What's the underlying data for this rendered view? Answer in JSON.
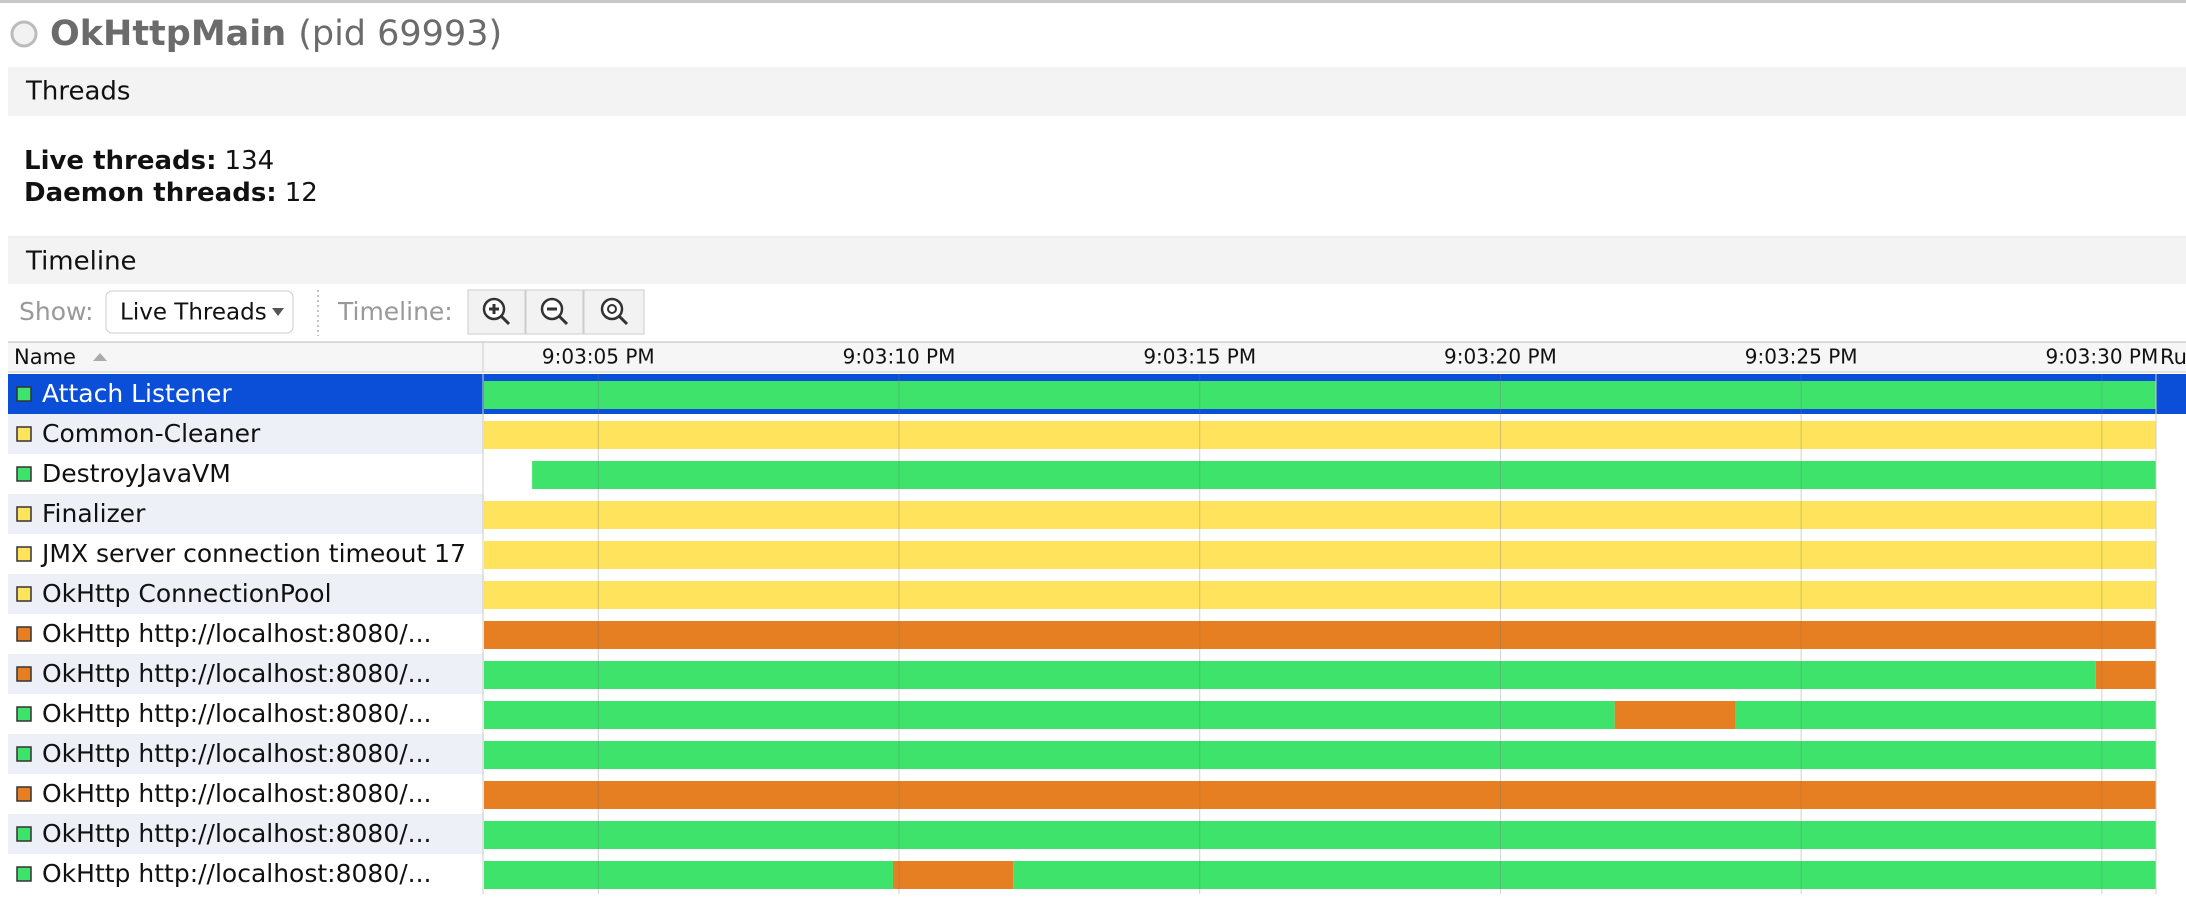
{
  "header": {
    "title": "OkHttpMain",
    "pid": "(pid 69993)"
  },
  "threads_section": {
    "title": "Threads",
    "live_label": "Live threads:",
    "live_value": 134,
    "daemon_label": "Daemon threads:",
    "daemon_value": 12
  },
  "timeline_section": {
    "title": "Timeline",
    "show_label": "Show:",
    "show_value": "Live Threads",
    "timeline_label": "Timeline:"
  },
  "chart_data": {
    "type": "timeline",
    "name_header": "Name",
    "extra_header": "Ru",
    "xlim": [
      3.1,
      30.9
    ],
    "xticks": [
      {
        "value": 5,
        "label": "9:03:05 PM"
      },
      {
        "value": 10,
        "label": "9:03:10 PM"
      },
      {
        "value": 15,
        "label": "9:03:15 PM"
      },
      {
        "value": 20,
        "label": "9:03:20 PM"
      },
      {
        "value": 25,
        "label": "9:03:25 PM"
      },
      {
        "value": 30,
        "label": "9:03:30 PM"
      }
    ],
    "grid": true,
    "selected_row": 0,
    "threads": [
      {
        "name": "Attach Listener",
        "color": "#3de36a",
        "segments": [
          {
            "start": 3.1,
            "end": 30.9,
            "color": "#3de36a"
          }
        ]
      },
      {
        "name": "Common-Cleaner",
        "color": "#ffe35c",
        "segments": [
          {
            "start": 3.1,
            "end": 30.9,
            "color": "#ffe35c"
          }
        ]
      },
      {
        "name": "DestroyJavaVM",
        "color": "#3de36a",
        "segments": [
          {
            "start": 3.9,
            "end": 30.9,
            "color": "#3de36a"
          }
        ]
      },
      {
        "name": "Finalizer",
        "color": "#ffe35c",
        "segments": [
          {
            "start": 3.1,
            "end": 30.9,
            "color": "#ffe35c"
          }
        ]
      },
      {
        "name": "JMX server connection timeout 17",
        "color": "#ffe35c",
        "segments": [
          {
            "start": 3.1,
            "end": 30.9,
            "color": "#ffe35c"
          }
        ]
      },
      {
        "name": "OkHttp ConnectionPool",
        "color": "#ffe35c",
        "segments": [
          {
            "start": 3.1,
            "end": 30.9,
            "color": "#ffe35c"
          }
        ]
      },
      {
        "name": "OkHttp http://localhost:8080/...",
        "color": "#e67e22",
        "segments": [
          {
            "start": 3.1,
            "end": 30.9,
            "color": "#e67e22"
          }
        ]
      },
      {
        "name": "OkHttp http://localhost:8080/...",
        "color": "#e67e22",
        "segments": [
          {
            "start": 3.1,
            "end": 29.9,
            "color": "#3de36a"
          },
          {
            "start": 29.9,
            "end": 30.9,
            "color": "#e67e22"
          }
        ]
      },
      {
        "name": "OkHttp http://localhost:8080/...",
        "color": "#3de36a",
        "segments": [
          {
            "start": 3.1,
            "end": 21.9,
            "color": "#3de36a"
          },
          {
            "start": 21.9,
            "end": 23.9,
            "color": "#e67e22"
          },
          {
            "start": 23.9,
            "end": 30.9,
            "color": "#3de36a"
          }
        ]
      },
      {
        "name": "OkHttp http://localhost:8080/...",
        "color": "#3de36a",
        "segments": [
          {
            "start": 3.1,
            "end": 30.9,
            "color": "#3de36a"
          }
        ]
      },
      {
        "name": "OkHttp http://localhost:8080/...",
        "color": "#e67e22",
        "segments": [
          {
            "start": 3.1,
            "end": 30.9,
            "color": "#e67e22"
          }
        ]
      },
      {
        "name": "OkHttp http://localhost:8080/...",
        "color": "#3de36a",
        "segments": [
          {
            "start": 3.1,
            "end": 30.9,
            "color": "#3de36a"
          }
        ]
      },
      {
        "name": "OkHttp http://localhost:8080/...",
        "color": "#3de36a",
        "segments": [
          {
            "start": 3.1,
            "end": 9.9,
            "color": "#3de36a"
          },
          {
            "start": 9.9,
            "end": 11.9,
            "color": "#e67e22"
          },
          {
            "start": 11.9,
            "end": 30.9,
            "color": "#3de36a"
          }
        ]
      }
    ]
  }
}
